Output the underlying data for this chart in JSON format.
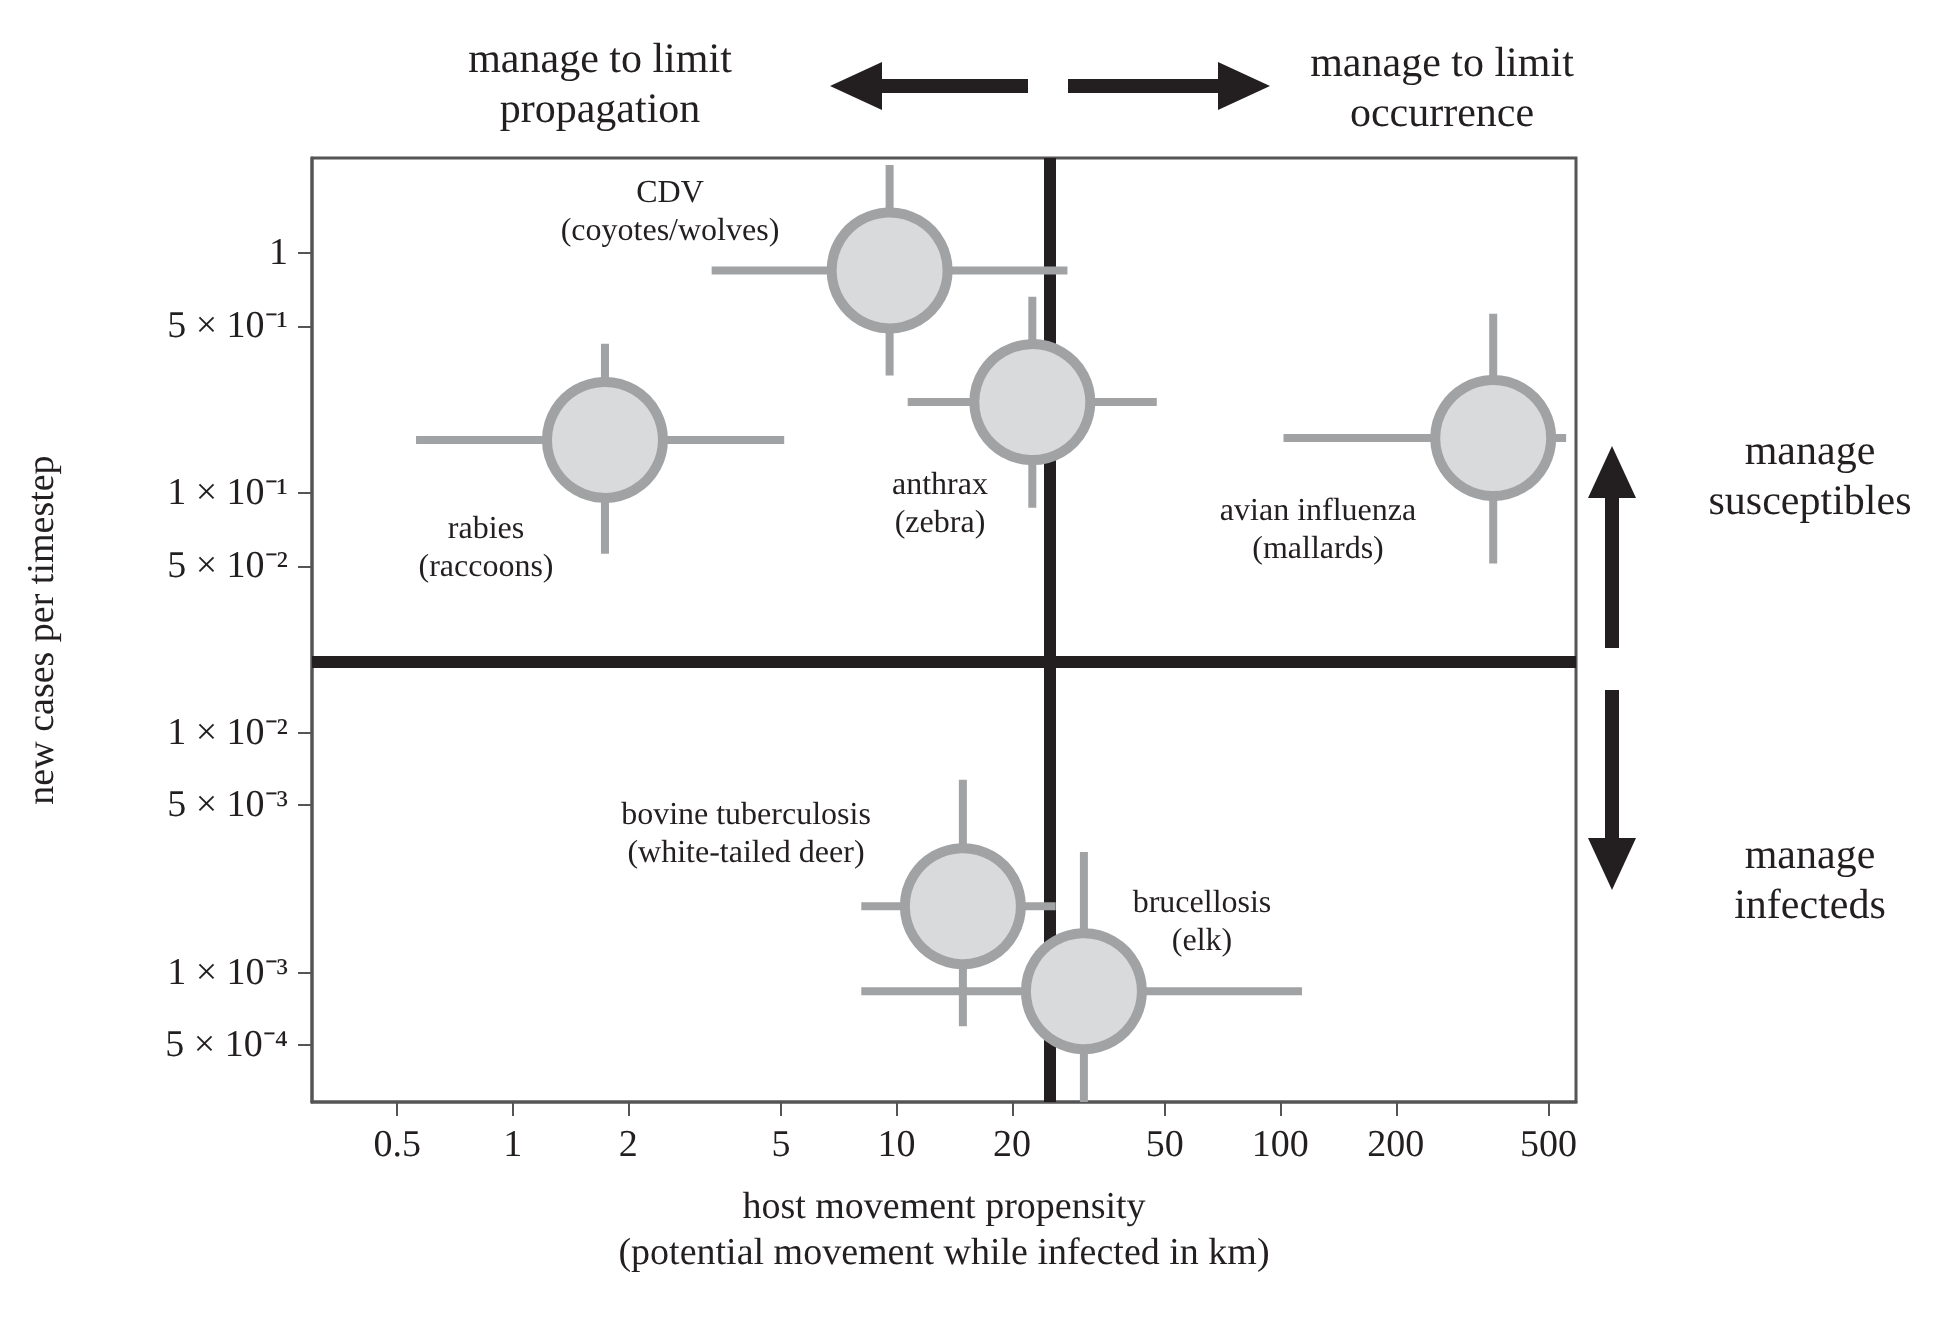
{
  "chart_data": {
    "type": "scatter",
    "xlabel": "host movement propensity\n(potential movement while infected in km)",
    "ylabel": "new cases per timestep",
    "log": "xy",
    "xlim": [
      0.3,
      590
    ],
    "xticks": [
      0.5,
      1,
      2,
      5,
      10,
      20,
      50,
      100,
      200,
      500
    ],
    "ylim": [
      0.00029,
      2.5
    ],
    "yticks": [
      1,
      {
        "value": 0.5,
        "label": "5 × 10⁻¹"
      },
      {
        "value": 0.1,
        "label": "1 × 10⁻¹"
      },
      {
        "value": 0.05,
        "label": "5 × 10⁻²"
      },
      {
        "value": 0.01,
        "label": "1 × 10⁻²"
      },
      {
        "value": 0.005,
        "label": "5 × 10⁻³"
      },
      {
        "value": 0.001,
        "label": "1 × 10⁻³"
      },
      {
        "value": 0.0005,
        "label": "5 × 10⁻⁴"
      }
    ],
    "marker": "circle",
    "series": [
      {
        "color": "#d9dadb",
        "x": [
          1.74,
          9.6,
          22.6,
          359,
          14.9,
          30.8
        ],
        "values": [
          0.167,
          0.85,
          0.24,
          0.17,
          0.0019,
          0.00084
        ],
        "xerrors": [
          [
            0.56,
            5.1
          ],
          [
            3.3,
            27.9
          ],
          [
            10.7,
            47.7
          ],
          [
            102,
            556
          ],
          [
            8.1,
            26
          ],
          [
            8.1,
            114
          ]
        ],
        "errors": [
          [
            0.056,
            0.42
          ],
          [
            0.31,
            2.34
          ],
          [
            0.087,
            0.66
          ],
          [
            0.051,
            0.56
          ],
          [
            0.0006,
            0.0064
          ],
          [
            0.00029,
            0.0032
          ]
        ]
      }
    ],
    "ref_lines": [
      {
        "axis": "x",
        "value": 25,
        "color": "#231f20"
      },
      {
        "axis": "y",
        "value": 0.02,
        "color": "#231f20"
      }
    ],
    "annotations": [
      "manage to limit\npropagation",
      "manage to limit\noccurrence",
      "manage\nsusceptibles",
      "manage\ninfecteds",
      "rabies\n(raccoons)",
      "CDV\n(coyotes/wolves)",
      "anthrax\n(zebra)",
      "avian influenza\n(mallards)",
      "bovine tuberculosis\n(white-tailed deer)",
      "brucellosis\n(elk)"
    ]
  }
}
